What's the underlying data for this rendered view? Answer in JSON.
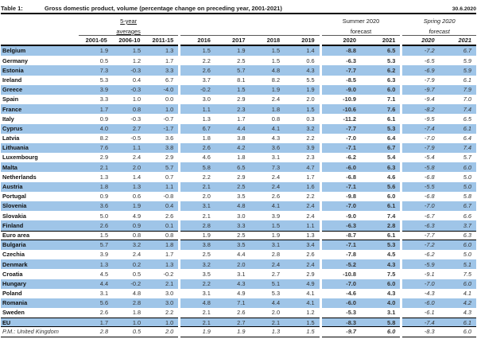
{
  "title": {
    "number": "Table 1:",
    "text": "Gross domestic product, volume (percentage change on preceding year, 2001-2021)",
    "date": "30.6.2020"
  },
  "header": {
    "groups": [
      {
        "line1": "5-year",
        "line2": "averages",
        "cols": [
          "2001-05",
          "2006-10",
          "2011-15"
        ]
      },
      {
        "line1": "",
        "line2": "",
        "cols": [
          "2016",
          "2017",
          "2018",
          "2019"
        ]
      },
      {
        "line1": "Summer 2020",
        "line2": "forecast",
        "cols": [
          "2020",
          "2021"
        ]
      },
      {
        "line1": "Spring 2020",
        "line2": "forecast",
        "cols": [
          "2020",
          "2021"
        ]
      }
    ]
  },
  "style_hints": {
    "shaded_row_color": "#9FC5E8",
    "rule_color": "#000000",
    "summer_columns": "bold",
    "spring_columns": "italic"
  },
  "rows": [
    {
      "name": "Belgium",
      "shaded": true,
      "values": [
        "1.9",
        "1.5",
        "1.3",
        "1.5",
        "1.9",
        "1.5",
        "1.4",
        "-8.8",
        "6.5",
        "-7.2",
        "6.7"
      ]
    },
    {
      "name": "Germany",
      "shaded": false,
      "values": [
        "0.5",
        "1.2",
        "1.7",
        "2.2",
        "2.5",
        "1.5",
        "0.6",
        "-6.3",
        "5.3",
        "-6.5",
        "5.9"
      ]
    },
    {
      "name": "Estonia",
      "shaded": true,
      "values": [
        "7.3",
        "-0.3",
        "3.3",
        "2.6",
        "5.7",
        "4.8",
        "4.3",
        "-7.7",
        "6.2",
        "-6.9",
        "5.9"
      ]
    },
    {
      "name": "Ireland",
      "shaded": false,
      "values": [
        "5.3",
        "0.4",
        "6.7",
        "3.7",
        "8.1",
        "8.2",
        "5.5",
        "-8.5",
        "6.3",
        "-7.9",
        "6.1"
      ]
    },
    {
      "name": "Greece",
      "shaded": true,
      "values": [
        "3.9",
        "-0.3",
        "-4.0",
        "-0.2",
        "1.5",
        "1.9",
        "1.9",
        "-9.0",
        "6.0",
        "-9.7",
        "7.9"
      ]
    },
    {
      "name": "Spain",
      "shaded": false,
      "values": [
        "3.3",
        "1.0",
        "0.0",
        "3.0",
        "2.9",
        "2.4",
        "2.0",
        "-10.9",
        "7.1",
        "-9.4",
        "7.0"
      ]
    },
    {
      "name": "France",
      "shaded": true,
      "values": [
        "1.7",
        "0.8",
        "1.0",
        "1.1",
        "2.3",
        "1.8",
        "1.5",
        "-10.6",
        "7.6",
        "-8.2",
        "7.4"
      ]
    },
    {
      "name": "Italy",
      "shaded": false,
      "values": [
        "0.9",
        "-0.3",
        "-0.7",
        "1.3",
        "1.7",
        "0.8",
        "0.3",
        "-11.2",
        "6.1",
        "-9.5",
        "6.5"
      ]
    },
    {
      "name": "Cyprus",
      "shaded": true,
      "values": [
        "4.0",
        "2.7",
        "-1.7",
        "6.7",
        "4.4",
        "4.1",
        "3.2",
        "-7.7",
        "5.3",
        "-7.4",
        "6.1"
      ]
    },
    {
      "name": "Latvia",
      "shaded": false,
      "values": [
        "8.2",
        "-0.5",
        "3.6",
        "1.8",
        "3.8",
        "4.3",
        "2.2",
        "-7.0",
        "6.4",
        "-7.0",
        "6.4"
      ]
    },
    {
      "name": "Lithuania",
      "shaded": true,
      "values": [
        "7.6",
        "1.1",
        "3.8",
        "2.6",
        "4.2",
        "3.6",
        "3.9",
        "-7.1",
        "6.7",
        "-7.9",
        "7.4"
      ]
    },
    {
      "name": "Luxembourg",
      "shaded": false,
      "values": [
        "2.9",
        "2.4",
        "2.9",
        "4.6",
        "1.8",
        "3.1",
        "2.3",
        "-6.2",
        "5.4",
        "-5.4",
        "5.7"
      ]
    },
    {
      "name": "Malta",
      "shaded": true,
      "values": [
        "2.1",
        "2.0",
        "5.7",
        "5.8",
        "6.5",
        "7.3",
        "4.7",
        "-6.0",
        "6.3",
        "-5.8",
        "6.0"
      ]
    },
    {
      "name": "Netherlands",
      "shaded": false,
      "values": [
        "1.3",
        "1.4",
        "0.7",
        "2.2",
        "2.9",
        "2.4",
        "1.7",
        "-6.8",
        "4.6",
        "-6.8",
        "5.0"
      ]
    },
    {
      "name": "Austria",
      "shaded": true,
      "values": [
        "1.8",
        "1.3",
        "1.1",
        "2.1",
        "2.5",
        "2.4",
        "1.6",
        "-7.1",
        "5.6",
        "-5.5",
        "5.0"
      ]
    },
    {
      "name": "Portugal",
      "shaded": false,
      "values": [
        "0.9",
        "0.6",
        "-0.8",
        "2.0",
        "3.5",
        "2.6",
        "2.2",
        "-9.8",
        "6.0",
        "-6.8",
        "5.8"
      ]
    },
    {
      "name": "Slovenia",
      "shaded": true,
      "values": [
        "3.6",
        "1.9",
        "0.4",
        "3.1",
        "4.8",
        "4.1",
        "2.4",
        "-7.0",
        "6.1",
        "-7.0",
        "6.7"
      ]
    },
    {
      "name": "Slovakia",
      "shaded": false,
      "values": [
        "5.0",
        "4.9",
        "2.6",
        "2.1",
        "3.0",
        "3.9",
        "2.4",
        "-9.0",
        "7.4",
        "-6.7",
        "6.6"
      ]
    },
    {
      "name": "Finland",
      "shaded": true,
      "values": [
        "2.6",
        "0.9",
        "0.1",
        "2.8",
        "3.3",
        "1.5",
        "1.1",
        "-6.3",
        "2.8",
        "-6.3",
        "3.7"
      ]
    },
    {
      "name": "Euro area",
      "shaded": false,
      "aggregate": true,
      "values": [
        "1.5",
        "0.8",
        "0.8",
        "1.9",
        "2.5",
        "1.9",
        "1.3",
        "-8.7",
        "6.1",
        "-7.7",
        "6.3"
      ]
    },
    {
      "name": "Bulgaria",
      "shaded": true,
      "values": [
        "5.7",
        "3.2",
        "1.8",
        "3.8",
        "3.5",
        "3.1",
        "3.4",
        "-7.1",
        "5.3",
        "-7.2",
        "6.0"
      ]
    },
    {
      "name": "Czechia",
      "shaded": false,
      "values": [
        "3.9",
        "2.4",
        "1.7",
        "2.5",
        "4.4",
        "2.8",
        "2.6",
        "-7.8",
        "4.5",
        "-6.2",
        "5.0"
      ]
    },
    {
      "name": "Denmark",
      "shaded": true,
      "values": [
        "1.3",
        "0.2",
        "1.3",
        "3.2",
        "2.0",
        "2.4",
        "2.4",
        "-5.2",
        "4.3",
        "-5.9",
        "5.1"
      ]
    },
    {
      "name": "Croatia",
      "shaded": false,
      "values": [
        "4.5",
        "0.5",
        "-0.2",
        "3.5",
        "3.1",
        "2.7",
        "2.9",
        "-10.8",
        "7.5",
        "-9.1",
        "7.5"
      ]
    },
    {
      "name": "Hungary",
      "shaded": true,
      "values": [
        "4.4",
        "-0.2",
        "2.1",
        "2.2",
        "4.3",
        "5.1",
        "4.9",
        "-7.0",
        "6.0",
        "-7.0",
        "6.0"
      ]
    },
    {
      "name": "Poland",
      "shaded": false,
      "values": [
        "3.1",
        "4.8",
        "3.0",
        "3.1",
        "4.9",
        "5.3",
        "4.1",
        "-4.6",
        "4.3",
        "-4.3",
        "4.1"
      ]
    },
    {
      "name": "Romania",
      "shaded": true,
      "values": [
        "5.6",
        "2.8",
        "3.0",
        "4.8",
        "7.1",
        "4.4",
        "4.1",
        "-6.0",
        "4.0",
        "-6.0",
        "4.2"
      ]
    },
    {
      "name": "Sweden",
      "shaded": false,
      "values": [
        "2.6",
        "1.8",
        "2.2",
        "2.1",
        "2.6",
        "2.0",
        "1.2",
        "-5.3",
        "3.1",
        "-6.1",
        "4.3"
      ]
    },
    {
      "name": "EU",
      "shaded": true,
      "aggregate": true,
      "values": [
        "1.7",
        "1.0",
        "1.0",
        "2.1",
        "2.7",
        "2.1",
        "1.5",
        "-8.3",
        "5.8",
        "-7.4",
        "6.1"
      ]
    }
  ],
  "footer_row": {
    "name": "P.M.: United Kingdom",
    "values": [
      "2.8",
      "0.5",
      "2.0",
      "1.9",
      "1.9",
      "1.3",
      "1.5",
      "-9.7",
      "6.0",
      "-8.3",
      "6.0"
    ]
  }
}
